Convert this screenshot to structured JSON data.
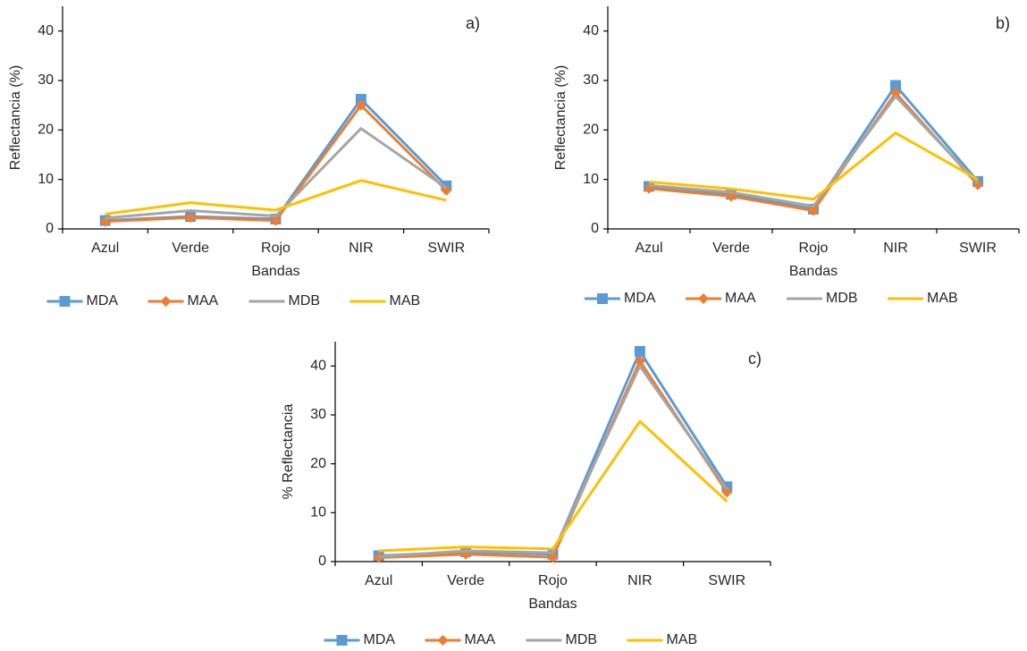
{
  "chart_data": [
    {
      "type": "line",
      "annotation": "a)",
      "x_label": "Bandas",
      "y_label": "Reflectancia (%)",
      "categories": [
        "Azul",
        "Verde",
        "Rojo",
        "NIR",
        "SWIR"
      ],
      "ylim": [
        0,
        45
      ],
      "yticks": [
        0,
        10,
        20,
        30,
        40
      ],
      "legend": "bottom",
      "series": [
        {
          "name": "MDA",
          "color": "#5b9bd5",
          "marker": "square",
          "values": [
            1.7,
            2.5,
            2.0,
            26.2,
            8.7
          ]
        },
        {
          "name": "MAA",
          "color": "#ed7d31",
          "marker": "diamond",
          "values": [
            1.5,
            2.3,
            1.7,
            25.0,
            7.8
          ]
        },
        {
          "name": "MDB",
          "color": "#a5a5a5",
          "marker": "none",
          "values": [
            2.2,
            3.7,
            2.6,
            20.3,
            8.3
          ]
        },
        {
          "name": "MAB",
          "color": "#ffc000",
          "marker": "none",
          "values": [
            3.0,
            5.3,
            3.8,
            9.8,
            5.8
          ]
        }
      ]
    },
    {
      "type": "line",
      "annotation": "b)",
      "x_label": "Bandas",
      "y_label": "Reflectancia (%)",
      "categories": [
        "Azul",
        "Verde",
        "Rojo",
        "NIR",
        "SWIR"
      ],
      "ylim": [
        0,
        45
      ],
      "yticks": [
        0,
        10,
        20,
        30,
        40
      ],
      "legend": "bottom",
      "series": [
        {
          "name": "MDA",
          "color": "#5b9bd5",
          "marker": "square",
          "values": [
            8.6,
            7.0,
            4.0,
            29.0,
            9.6
          ]
        },
        {
          "name": "MAA",
          "color": "#ed7d31",
          "marker": "diamond",
          "values": [
            8.2,
            6.6,
            3.7,
            27.5,
            8.9
          ]
        },
        {
          "name": "MDB",
          "color": "#a5a5a5",
          "marker": "none",
          "values": [
            8.8,
            7.4,
            4.6,
            26.8,
            9.3
          ]
        },
        {
          "name": "MAB",
          "color": "#ffc000",
          "marker": "none",
          "values": [
            9.5,
            8.1,
            6.0,
            19.4,
            10.0
          ]
        }
      ]
    },
    {
      "type": "line",
      "annotation": "c)",
      "x_label": "Bandas",
      "y_label": "% Reflectancia",
      "categories": [
        "Azul",
        "Verde",
        "Rojo",
        "NIR",
        "SWIR"
      ],
      "ylim": [
        0,
        45
      ],
      "yticks": [
        0,
        10,
        20,
        30,
        40
      ],
      "legend": "bottom",
      "series": [
        {
          "name": "MDA",
          "color": "#5b9bd5",
          "marker": "square",
          "values": [
            1.2,
            2.0,
            1.5,
            43.0,
            15.3
          ]
        },
        {
          "name": "MAA",
          "color": "#ed7d31",
          "marker": "diamond",
          "values": [
            0.8,
            1.5,
            0.9,
            41.0,
            14.2
          ]
        },
        {
          "name": "MDB",
          "color": "#a5a5a5",
          "marker": "none",
          "values": [
            1.0,
            2.2,
            1.8,
            40.0,
            14.8
          ]
        },
        {
          "name": "MAB",
          "color": "#ffc000",
          "marker": "none",
          "values": [
            2.2,
            3.0,
            2.6,
            28.7,
            12.3
          ]
        }
      ]
    }
  ]
}
